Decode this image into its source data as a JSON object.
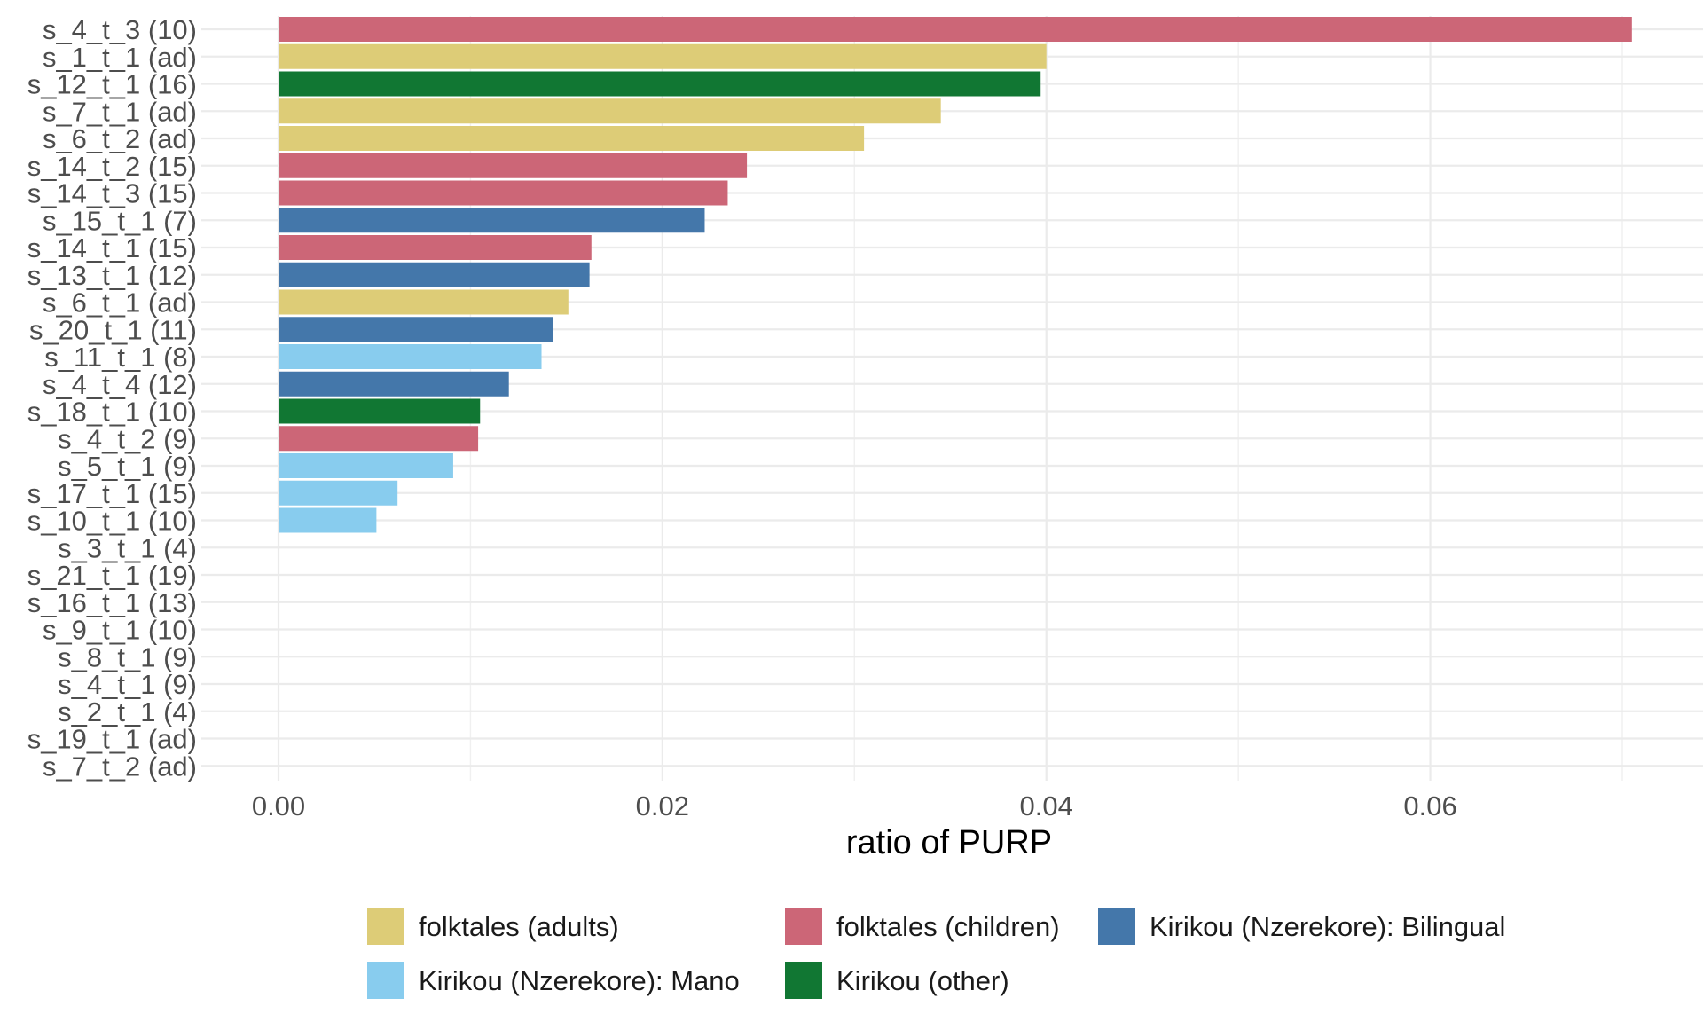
{
  "chart_data": {
    "type": "bar",
    "orientation": "horizontal",
    "xlabel": "ratio of PURP",
    "ylabel": "",
    "xlim": [
      -0.004,
      0.074
    ],
    "xticks": [
      0.0,
      0.02,
      0.04,
      0.06
    ],
    "xtick_labels": [
      "0.00",
      "0.02",
      "0.04",
      "0.06"
    ],
    "grid": true,
    "legend_position": "bottom",
    "groups": [
      {
        "name": "folktales (adults)",
        "color": "#DDCC77"
      },
      {
        "name": "folktales (children)",
        "color": "#CC6677"
      },
      {
        "name": "Kirikou (Nzerekore): Bilingual",
        "color": "#4477AA"
      },
      {
        "name": "Kirikou (Nzerekore): Mano",
        "color": "#88CCEE"
      },
      {
        "name": "Kirikou (other)",
        "color": "#117733"
      }
    ],
    "bars": [
      {
        "label": "s_4_t_3 (10)",
        "value": 0.0705,
        "group": 1
      },
      {
        "label": "s_1_t_1 (ad)",
        "value": 0.04,
        "group": 0
      },
      {
        "label": "s_12_t_1 (16)",
        "value": 0.0397,
        "group": 4
      },
      {
        "label": "s_7_t_1 (ad)",
        "value": 0.0345,
        "group": 0
      },
      {
        "label": "s_6_t_2 (ad)",
        "value": 0.0305,
        "group": 0
      },
      {
        "label": "s_14_t_2 (15)",
        "value": 0.0244,
        "group": 1
      },
      {
        "label": "s_14_t_3 (15)",
        "value": 0.0234,
        "group": 1
      },
      {
        "label": "s_15_t_1 (7)",
        "value": 0.0222,
        "group": 2
      },
      {
        "label": "s_14_t_1 (15)",
        "value": 0.0163,
        "group": 1
      },
      {
        "label": "s_13_t_1 (12)",
        "value": 0.0162,
        "group": 2
      },
      {
        "label": "s_6_t_1 (ad)",
        "value": 0.0151,
        "group": 0
      },
      {
        "label": "s_20_t_1 (11)",
        "value": 0.0143,
        "group": 2
      },
      {
        "label": "s_11_t_1 (8)",
        "value": 0.0137,
        "group": 3
      },
      {
        "label": "s_4_t_4 (12)",
        "value": 0.012,
        "group": 2
      },
      {
        "label": "s_18_t_1 (10)",
        "value": 0.0105,
        "group": 4
      },
      {
        "label": "s_4_t_2 (9)",
        "value": 0.0104,
        "group": 1
      },
      {
        "label": "s_5_t_1 (9)",
        "value": 0.0091,
        "group": 3
      },
      {
        "label": "s_17_t_1 (15)",
        "value": 0.0062,
        "group": 3
      },
      {
        "label": "s_10_t_1 (10)",
        "value": 0.0051,
        "group": 3
      },
      {
        "label": "s_3_t_1 (4)",
        "value": 0,
        "group": null
      },
      {
        "label": "s_21_t_1 (19)",
        "value": 0,
        "group": null
      },
      {
        "label": "s_16_t_1 (13)",
        "value": 0,
        "group": null
      },
      {
        "label": "s_9_t_1 (10)",
        "value": 0,
        "group": null
      },
      {
        "label": "s_8_t_1 (9)",
        "value": 0,
        "group": null
      },
      {
        "label": "s_4_t_1 (9)",
        "value": 0,
        "group": null
      },
      {
        "label": "s_2_t_1 (4)",
        "value": 0,
        "group": null
      },
      {
        "label": "s_19_t_1 (ad)",
        "value": 0,
        "group": null
      },
      {
        "label": "s_7_t_2 (ad)",
        "value": 0,
        "group": null
      }
    ]
  }
}
